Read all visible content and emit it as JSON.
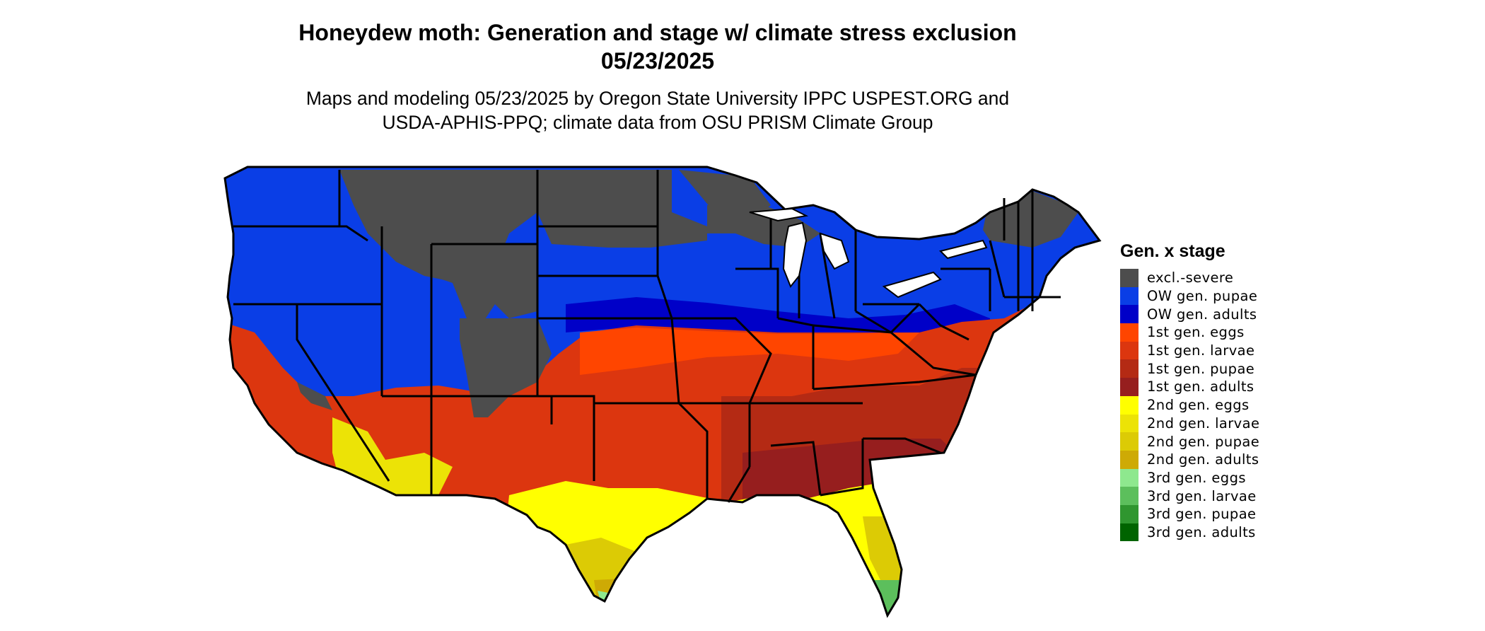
{
  "title_line1": "Honeydew moth: Generation and stage w/ climate stress exclusion",
  "title_line2": "05/23/2025",
  "subtitle_line1": "Maps and modeling 05/23/2025 by Oregon State University IPPC USPEST.ORG and",
  "subtitle_line2": "USDA-APHIS-PPQ; climate data from OSU PRISM Climate Group",
  "legend": {
    "title": "Gen. x stage",
    "items": [
      {
        "label": "excl.-severe",
        "color": "#4d4d4d"
      },
      {
        "label": "OW gen. pupae",
        "color": "#0a3ee6"
      },
      {
        "label": "OW gen. adults",
        "color": "#0000c8"
      },
      {
        "label": "1st gen. eggs",
        "color": "#ff4500"
      },
      {
        "label": "1st gen. larvae",
        "color": "#dc360f"
      },
      {
        "label": "1st gen. pupae",
        "color": "#b42a14"
      },
      {
        "label": "1st gen. adults",
        "color": "#961e1e"
      },
      {
        "label": "2nd gen. eggs",
        "color": "#ffff00"
      },
      {
        "label": "2nd gen. larvae",
        "color": "#ece306"
      },
      {
        "label": "2nd gen. pupae",
        "color": "#dccb05"
      },
      {
        "label": "2nd gen. adults",
        "color": "#ceaa05"
      },
      {
        "label": "3rd gen. eggs",
        "color": "#8ee88e"
      },
      {
        "label": "3rd gen. larvae",
        "color": "#5cbf5c"
      },
      {
        "label": "3rd gen. pupae",
        "color": "#2f962f"
      },
      {
        "label": "3rd gen. adults",
        "color": "#006400"
      }
    ]
  }
}
